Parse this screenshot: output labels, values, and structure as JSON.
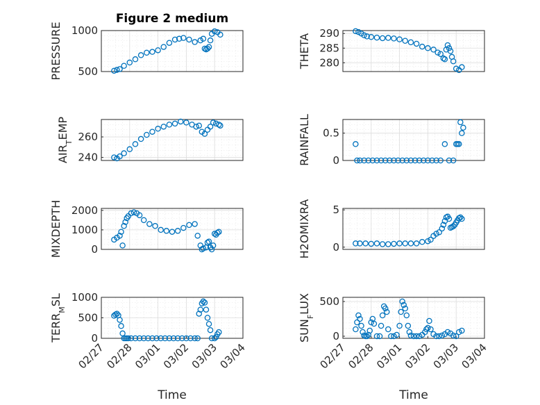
{
  "figure": {
    "title": "Figure 2 medium",
    "colors": {
      "series": "#0072bd",
      "axes": "#262626",
      "grid": "#dcdcdc"
    }
  },
  "chart_data": [
    {
      "type": "scatter",
      "id": "pressure",
      "ylabel": "PRESSURE",
      "xlabel": "",
      "ylim": [
        500,
        1000
      ],
      "yticks": [
        500,
        1000
      ],
      "xlim": [
        "02/27",
        "03/04"
      ],
      "grid": true,
      "minor_grid": true,
      "x": [
        0.45,
        0.55,
        0.65,
        0.8,
        1.0,
        1.2,
        1.4,
        1.6,
        1.8,
        2.0,
        2.2,
        2.4,
        2.6,
        2.75,
        2.9,
        3.1,
        3.3,
        3.5,
        3.6,
        3.65,
        3.7,
        3.75,
        3.8,
        3.85,
        3.9,
        4.0,
        4.1,
        4.2
      ],
      "y": [
        510,
        520,
        530,
        570,
        610,
        650,
        700,
        730,
        740,
        760,
        800,
        850,
        890,
        900,
        910,
        890,
        860,
        880,
        900,
        780,
        770,
        780,
        800,
        880,
        960,
        990,
        980,
        950
      ]
    },
    {
      "type": "scatter",
      "id": "theta",
      "ylabel": "THETA",
      "xlabel": "",
      "ylim": [
        277,
        291
      ],
      "yticks": [
        280,
        285,
        290
      ],
      "xlim": [
        "02/27",
        "03/04"
      ],
      "grid": true,
      "minor_grid": true,
      "x": [
        0.45,
        0.55,
        0.65,
        0.75,
        0.85,
        1.0,
        1.2,
        1.4,
        1.6,
        1.8,
        2.0,
        2.2,
        2.4,
        2.6,
        2.8,
        3.0,
        3.2,
        3.35,
        3.45,
        3.55,
        3.6,
        3.65,
        3.7,
        3.75,
        3.8,
        3.85,
        3.9,
        4.0,
        4.1,
        4.2
      ],
      "y": [
        290.8,
        290.5,
        290.0,
        289.4,
        289.0,
        288.8,
        288.6,
        288.4,
        288.5,
        288.3,
        288.0,
        287.5,
        287.0,
        286.5,
        285.5,
        285.0,
        284.5,
        283.5,
        283.0,
        281.5,
        281.2,
        284.5,
        286.0,
        285.0,
        284.0,
        282.0,
        280.5,
        278.0,
        277.5,
        278.5
      ]
    },
    {
      "type": "scatter",
      "id": "air_temp",
      "ylabel": "AIR_TEMP",
      "xlabel": "",
      "ylim": [
        237,
        277
      ],
      "yticks": [
        240,
        260
      ],
      "xlim": [
        "02/27",
        "03/04"
      ],
      "grid": true,
      "minor_grid": true,
      "x": [
        0.45,
        0.55,
        0.65,
        0.8,
        1.0,
        1.2,
        1.4,
        1.6,
        1.8,
        2.0,
        2.2,
        2.4,
        2.6,
        2.8,
        3.0,
        3.2,
        3.35,
        3.45,
        3.55,
        3.65,
        3.75,
        3.85,
        3.95,
        4.05,
        4.15,
        4.2
      ],
      "y": [
        240,
        239,
        241,
        244,
        248,
        253,
        258,
        262,
        265,
        268,
        270,
        272,
        273,
        275,
        274,
        272,
        270,
        271,
        265,
        263,
        267,
        270,
        274,
        273,
        272,
        271
      ]
    },
    {
      "type": "scatter",
      "id": "rainfall",
      "ylabel": "RAINFALL",
      "xlabel": "",
      "ylim": [
        0,
        0.75
      ],
      "yticks": [
        0,
        0.5
      ],
      "xlim": [
        "02/27",
        "03/04"
      ],
      "grid": true,
      "minor_grid": true,
      "x": [
        0.45,
        0.5,
        0.6,
        0.75,
        0.9,
        1.05,
        1.2,
        1.35,
        1.5,
        1.65,
        1.8,
        1.95,
        2.1,
        2.25,
        2.4,
        2.55,
        2.7,
        2.85,
        3.0,
        3.15,
        3.3,
        3.45,
        3.6,
        3.75,
        3.9,
        4.0,
        4.05,
        4.1,
        4.15,
        4.2,
        4.25
      ],
      "y": [
        0.3,
        0,
        0,
        0,
        0,
        0,
        0,
        0,
        0,
        0,
        0,
        0,
        0,
        0,
        0,
        0,
        0,
        0,
        0,
        0,
        0,
        0,
        0.3,
        0,
        0,
        0.3,
        0.3,
        0.3,
        0.7,
        0.5,
        0.6
      ]
    },
    {
      "type": "scatter",
      "id": "mixdepth",
      "ylabel": "MIXDEPTH",
      "xlabel": "",
      "ylim": [
        0,
        2100
      ],
      "yticks": [
        0,
        1000,
        2000
      ],
      "xlim": [
        "02/27",
        "03/04"
      ],
      "grid": true,
      "minor_grid": true,
      "x": [
        0.45,
        0.55,
        0.65,
        0.7,
        0.75,
        0.8,
        0.85,
        0.9,
        0.95,
        1.05,
        1.15,
        1.25,
        1.35,
        1.5,
        1.7,
        1.9,
        2.1,
        2.3,
        2.5,
        2.7,
        2.9,
        3.1,
        3.3,
        3.4,
        3.5,
        3.55,
        3.6,
        3.7,
        3.75,
        3.8,
        3.85,
        3.9,
        3.95,
        4.0,
        4.05,
        4.1,
        4.15
      ],
      "y": [
        500,
        600,
        700,
        900,
        200,
        1200,
        1400,
        1600,
        1700,
        1850,
        1900,
        1850,
        1750,
        1500,
        1300,
        1200,
        1000,
        950,
        900,
        950,
        1100,
        1250,
        1300,
        700,
        200,
        0,
        50,
        100,
        350,
        400,
        100,
        0,
        200,
        800,
        750,
        850,
        900
      ]
    },
    {
      "type": "scatter",
      "id": "h2omixra",
      "ylabel": "H2OMIXRA",
      "xlabel": "",
      "ylim": [
        -0.3,
        5.2
      ],
      "yticks": [
        0,
        5
      ],
      "xlim": [
        "02/27",
        "03/04"
      ],
      "grid": true,
      "minor_grid": true,
      "x": [
        0.45,
        0.6,
        0.8,
        1.0,
        1.2,
        1.4,
        1.6,
        1.8,
        2.0,
        2.2,
        2.4,
        2.6,
        2.8,
        3.0,
        3.1,
        3.2,
        3.3,
        3.4,
        3.5,
        3.55,
        3.6,
        3.65,
        3.7,
        3.75,
        3.8,
        3.85,
        3.9,
        3.95,
        4.0,
        4.05,
        4.1,
        4.15,
        4.2
      ],
      "y": [
        0.5,
        0.5,
        0.5,
        0.45,
        0.5,
        0.4,
        0.4,
        0.45,
        0.5,
        0.5,
        0.5,
        0.5,
        0.7,
        0.8,
        1.0,
        1.5,
        1.8,
        2.0,
        2.5,
        3.0,
        3.5,
        4.0,
        4.1,
        3.8,
        2.6,
        2.7,
        2.8,
        3.0,
        3.3,
        3.6,
        3.9,
        4.0,
        3.8
      ]
    },
    {
      "type": "scatter",
      "id": "terr_msl",
      "ylabel": "TERR_MSL",
      "xlabel": "Time",
      "ylim": [
        0,
        1000
      ],
      "yticks": [
        0,
        500,
        1000
      ],
      "xlim": [
        "02/27",
        "03/04"
      ],
      "xticks": [
        "02/27",
        "02/28",
        "03/01",
        "03/02",
        "03/03",
        "03/04"
      ],
      "grid": true,
      "minor_grid": true,
      "x": [
        0.45,
        0.5,
        0.55,
        0.6,
        0.65,
        0.7,
        0.75,
        0.8,
        0.85,
        0.9,
        0.95,
        1.05,
        1.2,
        1.35,
        1.5,
        1.65,
        1.8,
        1.95,
        2.1,
        2.25,
        2.4,
        2.55,
        2.7,
        2.85,
        3.0,
        3.15,
        3.3,
        3.4,
        3.45,
        3.5,
        3.55,
        3.6,
        3.65,
        3.7,
        3.75,
        3.8,
        3.85,
        3.9,
        4.0,
        4.05,
        4.1,
        4.15
      ],
      "y": [
        550,
        580,
        600,
        560,
        450,
        300,
        120,
        0,
        0,
        0,
        0,
        0,
        0,
        0,
        0,
        0,
        0,
        0,
        0,
        0,
        0,
        0,
        0,
        0,
        0,
        0,
        0,
        0,
        600,
        700,
        850,
        900,
        870,
        700,
        500,
        350,
        200,
        0,
        0,
        30,
        100,
        150
      ]
    },
    {
      "type": "scatter",
      "id": "sun_flux",
      "ylabel": "SUN_FLUX",
      "xlabel": "Time",
      "ylim": [
        -30,
        560
      ],
      "yticks": [
        0,
        500
      ],
      "xlim": [
        "02/27",
        "03/04"
      ],
      "xticks": [
        "02/27",
        "02/28",
        "03/01",
        "03/02",
        "03/03",
        "03/04"
      ],
      "grid": true,
      "minor_grid": true,
      "x": [
        0.45,
        0.5,
        0.55,
        0.6,
        0.65,
        0.7,
        0.75,
        0.8,
        0.85,
        0.9,
        0.95,
        1.0,
        1.05,
        1.1,
        1.2,
        1.3,
        1.35,
        1.4,
        1.45,
        1.5,
        1.55,
        1.6,
        1.7,
        1.8,
        1.9,
        2.0,
        2.05,
        2.1,
        2.15,
        2.2,
        2.25,
        2.3,
        2.35,
        2.4,
        2.5,
        2.6,
        2.7,
        2.8,
        2.9,
        2.95,
        3.0,
        3.05,
        3.1,
        3.2,
        3.3,
        3.4,
        3.5,
        3.6,
        3.7,
        3.8,
        3.9,
        4.0,
        4.1,
        4.2
      ],
      "y": [
        100,
        200,
        300,
        250,
        150,
        60,
        10,
        0,
        0,
        20,
        80,
        200,
        250,
        180,
        0,
        0,
        150,
        300,
        430,
        400,
        350,
        100,
        0,
        0,
        20,
        150,
        350,
        500,
        450,
        400,
        300,
        150,
        60,
        10,
        0,
        0,
        0,
        20,
        60,
        100,
        120,
        220,
        100,
        30,
        0,
        0,
        10,
        30,
        60,
        40,
        10,
        0,
        60,
        80
      ]
    }
  ]
}
